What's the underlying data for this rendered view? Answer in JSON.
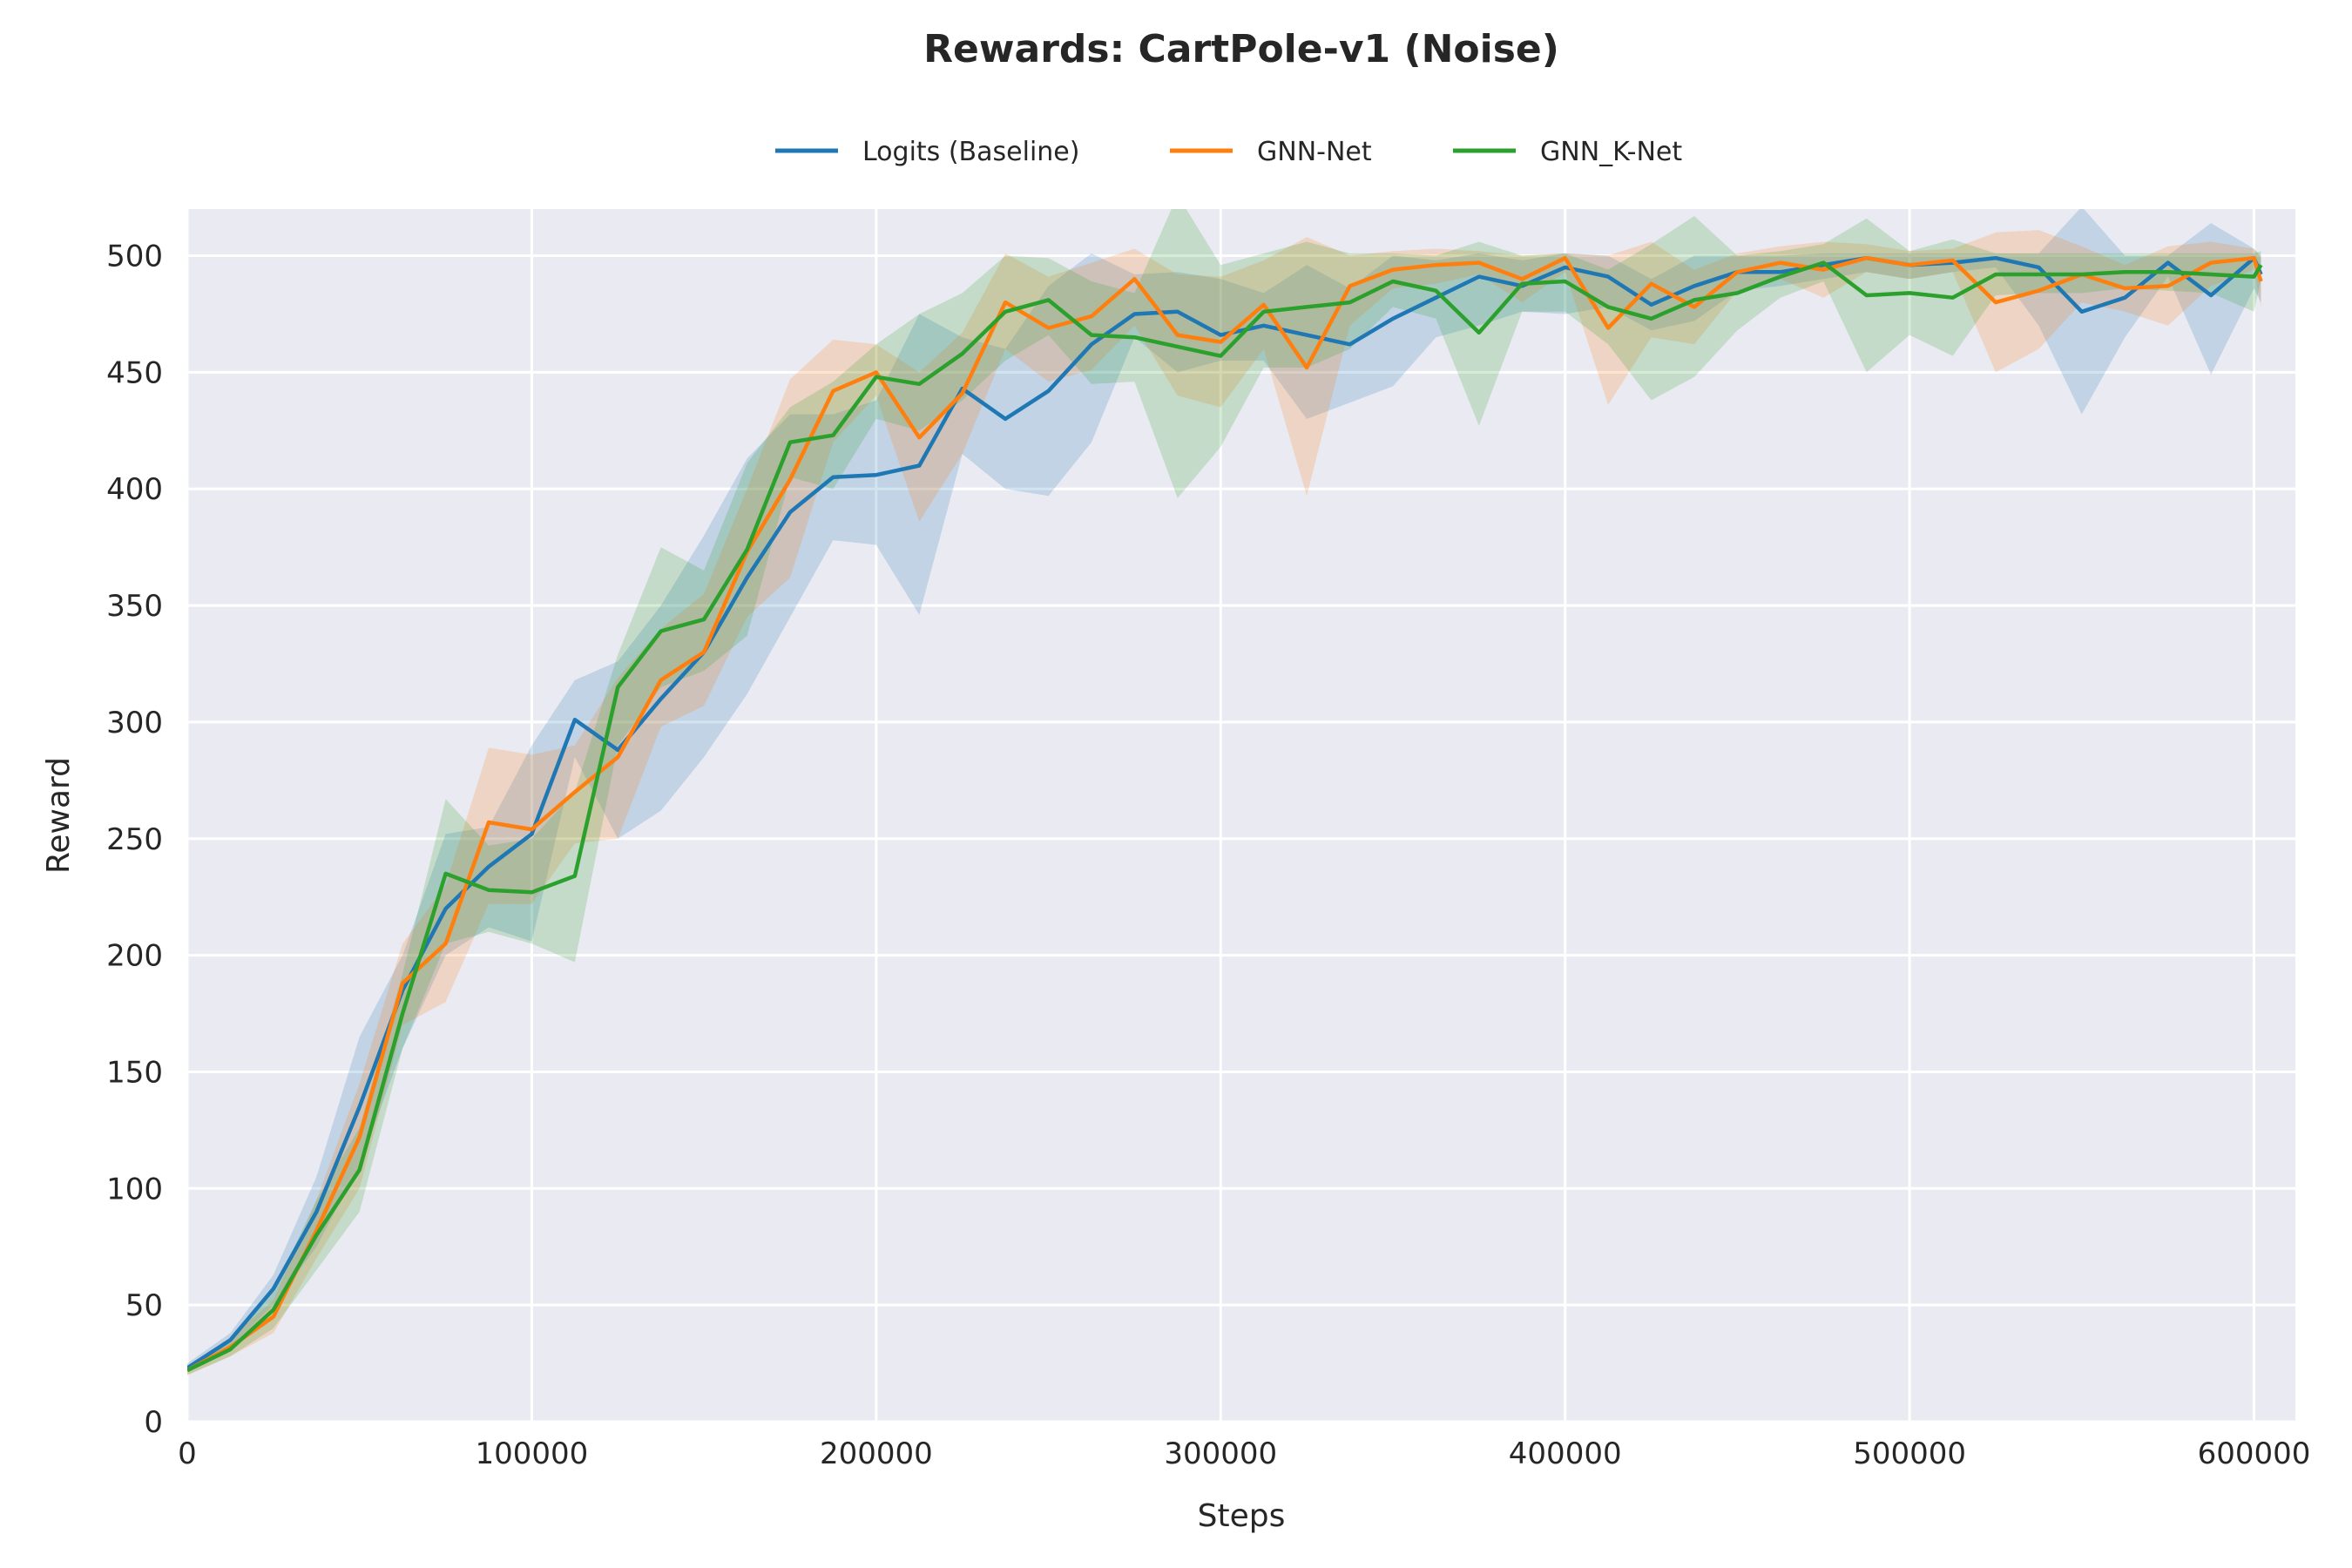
{
  "chart_data": {
    "type": "line",
    "title": "Rewards: CartPole-v1 (Noise)",
    "xlabel": "Steps",
    "ylabel": "Reward",
    "xlim": [
      0,
      612000
    ],
    "ylim": [
      0,
      520
    ],
    "xticks": [
      0,
      100000,
      200000,
      300000,
      400000,
      500000,
      600000
    ],
    "yticks": [
      0,
      50,
      100,
      150,
      200,
      250,
      300,
      350,
      400,
      450,
      500
    ],
    "grid": true,
    "legend_position": "top-center",
    "x": [
      0,
      12500,
      25000,
      37500,
      50000,
      62500,
      75000,
      87500,
      100000,
      112500,
      125000,
      137500,
      150000,
      162500,
      175000,
      187500,
      200000,
      212500,
      225000,
      237500,
      250000,
      262500,
      275000,
      287500,
      300000,
      312500,
      325000,
      337500,
      350000,
      362500,
      375000,
      387500,
      400000,
      412500,
      425000,
      437500,
      450000,
      462500,
      475000,
      487500,
      500000,
      512500,
      525000,
      537500,
      550000,
      562500,
      575000,
      587500,
      600000,
      602000
    ],
    "series": [
      {
        "name": "Logits (Baseline)",
        "color": "#1f77b4",
        "values": [
          23,
          35,
          57,
          90,
          135,
          185,
          220,
          238,
          252,
          301,
          288,
          310,
          330,
          362,
          390,
          405,
          406,
          410,
          443,
          430,
          442,
          462,
          475,
          476,
          466,
          470,
          466,
          462,
          473,
          482,
          491,
          487,
          495,
          491,
          479,
          487,
          493,
          493,
          496,
          499,
          496,
          497,
          499,
          495,
          476,
          482,
          497,
          483,
          499,
          492
        ],
        "lower": [
          22,
          32,
          50,
          75,
          110,
          160,
          200,
          212,
          206,
          285,
          250,
          262,
          285,
          312,
          345,
          378,
          376,
          346,
          415,
          400,
          397,
          420,
          465,
          450,
          455,
          455,
          430,
          437,
          444,
          465,
          470,
          476,
          475,
          478,
          468,
          472,
          485,
          487,
          490,
          493,
          490,
          493,
          495,
          470,
          432,
          465,
          491,
          449,
          486,
          480
        ],
        "upper": [
          25,
          38,
          63,
          105,
          165,
          200,
          252,
          255,
          290,
          318,
          326,
          350,
          380,
          413,
          432,
          432,
          438,
          475,
          465,
          460,
          487,
          501,
          492,
          493,
          490,
          484,
          496,
          486,
          500,
          498,
          501,
          498,
          501,
          500,
          490,
          500,
          500,
          500,
          501,
          501,
          501,
          501,
          501,
          501,
          521,
          500,
          500,
          514,
          503,
          500
        ]
      },
      {
        "name": "GNN-Net",
        "color": "#ff7f0e",
        "values": [
          22,
          32,
          45,
          82,
          122,
          188,
          205,
          257,
          254,
          270,
          285,
          318,
          330,
          373,
          404,
          442,
          450,
          422,
          441,
          480,
          469,
          474,
          490,
          466,
          463,
          479,
          452,
          487,
          494,
          496,
          497,
          490,
          499,
          469,
          488,
          478,
          493,
          497,
          494,
          499,
          496,
          498,
          480,
          485,
          492,
          486,
          487,
          497,
          499,
          489
        ],
        "lower": [
          20,
          28,
          38,
          70,
          100,
          170,
          180,
          222,
          222,
          248,
          250,
          298,
          307,
          345,
          362,
          420,
          440,
          386,
          415,
          460,
          446,
          451,
          470,
          440,
          435,
          460,
          397,
          470,
          486,
          488,
          492,
          480,
          493,
          436,
          465,
          462,
          485,
          490,
          482,
          493,
          490,
          493,
          450,
          460,
          480,
          476,
          470,
          487,
          494,
          478
        ],
        "upper": [
          24,
          36,
          52,
          95,
          145,
          205,
          230,
          289,
          286,
          290,
          319,
          340,
          355,
          400,
          447,
          464,
          462,
          450,
          467,
          501,
          491,
          497,
          503,
          492,
          491,
          498,
          508,
          500,
          502,
          503,
          502,
          500,
          501,
          500,
          506,
          494,
          501,
          504,
          506,
          505,
          502,
          503,
          510,
          511,
          504,
          496,
          504,
          506,
          503,
          499
        ]
      },
      {
        "name": "GNN_K-Net",
        "color": "#2ca02c",
        "values": [
          22,
          31,
          48,
          80,
          108,
          175,
          235,
          228,
          227,
          234,
          315,
          339,
          344,
          374,
          420,
          423,
          448,
          445,
          458,
          476,
          481,
          466,
          465,
          461,
          457,
          476,
          478,
          480,
          489,
          485,
          467,
          488,
          489,
          478,
          473,
          481,
          484,
          491,
          497,
          483,
          484,
          482,
          492,
          492,
          492,
          493,
          493,
          492,
          491,
          496
        ],
        "lower": [
          20,
          28,
          40,
          65,
          90,
          160,
          205,
          210,
          205,
          197,
          290,
          315,
          322,
          337,
          405,
          400,
          430,
          425,
          438,
          455,
          466,
          445,
          446,
          396,
          418,
          452,
          452,
          460,
          478,
          473,
          427,
          476,
          476,
          462,
          438,
          448,
          468,
          482,
          489,
          450,
          466,
          457,
          483,
          484,
          484,
          486,
          485,
          484,
          476,
          490
        ],
        "upper": [
          24,
          34,
          56,
          95,
          126,
          192,
          267,
          247,
          250,
          270,
          329,
          375,
          365,
          411,
          435,
          446,
          462,
          475,
          484,
          500,
          499,
          489,
          484,
          526,
          496,
          501,
          506,
          501,
          501,
          500,
          506,
          500,
          501,
          494,
          505,
          517,
          500,
          502,
          505,
          516,
          502,
          507,
          501,
          501,
          501,
          501,
          501,
          501,
          501,
          502
        ]
      }
    ]
  }
}
